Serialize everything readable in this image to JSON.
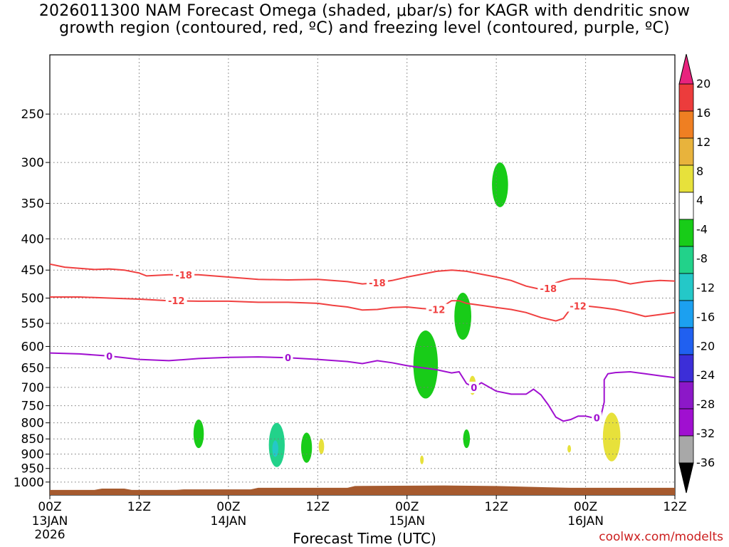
{
  "title": {
    "line1": "2026011300 NAM Forecast Omega (shaded, μbar/s) for KAGR with dendritic snow",
    "line2": "growth region (contoured, red, ºC) and freezing level (contoured, purple, ºC)"
  },
  "credit": "coolwx.com/modelts",
  "chart_data": {
    "type": "time-height cross section",
    "title": "2026011300 NAM Forecast Omega (shaded, μbar/s) for KAGR with dendritic snow growth region (contoured, red, ºC) and freezing level (contoured, purple, ºC)",
    "xlabel": "Forecast Time (UTC)",
    "ylabel": "",
    "x_unit": "hours since 2026-01-13 00Z",
    "xlim": [
      0,
      84
    ],
    "ylim_hPa": [
      1050,
      200
    ],
    "y_ticks": [
      250,
      300,
      350,
      400,
      450,
      500,
      550,
      600,
      650,
      700,
      750,
      800,
      850,
      900,
      950,
      1000
    ],
    "x_ticks": [
      {
        "h": 0,
        "label": "00Z",
        "day": "13JAN",
        "year": "2026"
      },
      {
        "h": 12,
        "label": "12Z",
        "day": "",
        "year": ""
      },
      {
        "h": 24,
        "label": "00Z",
        "day": "14JAN",
        "year": ""
      },
      {
        "h": 36,
        "label": "12Z",
        "day": "",
        "year": ""
      },
      {
        "h": 48,
        "label": "00Z",
        "day": "15JAN",
        "year": ""
      },
      {
        "h": 60,
        "label": "12Z",
        "day": "",
        "year": ""
      },
      {
        "h": 72,
        "label": "00Z",
        "day": "16JAN",
        "year": ""
      },
      {
        "h": 84,
        "label": "12Z",
        "day": "",
        "year": ""
      }
    ],
    "colorbar": {
      "labels": [
        "20",
        "16",
        "12",
        "8",
        "4",
        "-4",
        "-8",
        "-12",
        "-16",
        "-20",
        "-24",
        "-28",
        "-32",
        "-36"
      ],
      "colors": [
        "#e8237e",
        "#ec3c3c",
        "#ef7f22",
        "#e8b33c",
        "#e7e13b",
        "#ffffff",
        "#18cc18",
        "#22d28a",
        "#24c8c8",
        "#1ca0f0",
        "#2060f0",
        "#3c2ed8",
        "#8c18c8",
        "#a010d0",
        "#a8a8a8",
        "#000000"
      ]
    },
    "contours": [
      {
        "name": "-18 C",
        "label": "-18",
        "color": "#f04040",
        "points": [
          [
            0,
            440
          ],
          [
            2,
            445
          ],
          [
            4,
            447
          ],
          [
            6,
            449
          ],
          [
            8,
            448
          ],
          [
            10,
            450
          ],
          [
            12,
            455
          ],
          [
            13,
            460
          ],
          [
            16,
            458
          ],
          [
            20,
            458
          ],
          [
            24,
            462
          ],
          [
            28,
            466
          ],
          [
            32,
            467
          ],
          [
            36,
            466
          ],
          [
            40,
            470
          ],
          [
            42,
            474
          ],
          [
            44,
            472
          ],
          [
            46,
            468
          ],
          [
            48,
            462
          ],
          [
            50,
            457
          ],
          [
            52,
            452
          ],
          [
            54,
            450
          ],
          [
            56,
            452
          ],
          [
            58,
            457
          ],
          [
            60,
            462
          ],
          [
            62,
            468
          ],
          [
            64,
            478
          ],
          [
            66,
            484
          ],
          [
            67,
            482
          ],
          [
            68,
            472
          ],
          [
            69,
            468
          ],
          [
            70,
            465
          ],
          [
            72,
            465
          ],
          [
            76,
            468
          ],
          [
            78,
            474
          ],
          [
            80,
            470
          ],
          [
            82,
            468
          ],
          [
            84,
            469
          ]
        ]
      },
      {
        "name": "-12 C",
        "label": "-12",
        "color": "#f04040",
        "points": [
          [
            0,
            498
          ],
          [
            4,
            498
          ],
          [
            8,
            500
          ],
          [
            12,
            502
          ],
          [
            16,
            505
          ],
          [
            20,
            506
          ],
          [
            24,
            506
          ],
          [
            28,
            508
          ],
          [
            32,
            508
          ],
          [
            36,
            510
          ],
          [
            38,
            514
          ],
          [
            40,
            517
          ],
          [
            42,
            523
          ],
          [
            44,
            522
          ],
          [
            46,
            518
          ],
          [
            48,
            517
          ],
          [
            50,
            520
          ],
          [
            52,
            522
          ],
          [
            53,
            514
          ],
          [
            54,
            505
          ],
          [
            55,
            505
          ],
          [
            56,
            510
          ],
          [
            58,
            514
          ],
          [
            60,
            518
          ],
          [
            62,
            522
          ],
          [
            64,
            528
          ],
          [
            66,
            538
          ],
          [
            68,
            545
          ],
          [
            69,
            540
          ],
          [
            70,
            520
          ],
          [
            71,
            515
          ],
          [
            72,
            515
          ],
          [
            74,
            518
          ],
          [
            76,
            522
          ],
          [
            78,
            528
          ],
          [
            80,
            536
          ],
          [
            82,
            532
          ],
          [
            84,
            528
          ]
        ]
      },
      {
        "name": "0 C",
        "label": "0",
        "color": "#a010d0",
        "points": [
          [
            0,
            615
          ],
          [
            4,
            617
          ],
          [
            8,
            622
          ],
          [
            12,
            630
          ],
          [
            16,
            633
          ],
          [
            20,
            628
          ],
          [
            24,
            625
          ],
          [
            28,
            624
          ],
          [
            32,
            626
          ],
          [
            36,
            630
          ],
          [
            40,
            635
          ],
          [
            42,
            640
          ],
          [
            44,
            633
          ],
          [
            46,
            638
          ],
          [
            48,
            645
          ],
          [
            50,
            650
          ],
          [
            52,
            655
          ],
          [
            54,
            663
          ],
          [
            55,
            660
          ],
          [
            56,
            690
          ],
          [
            57,
            700
          ],
          [
            58,
            688
          ],
          [
            60,
            710
          ],
          [
            62,
            718
          ],
          [
            64,
            718
          ],
          [
            65,
            705
          ],
          [
            66,
            720
          ],
          [
            67,
            748
          ],
          [
            68,
            783
          ],
          [
            69,
            795
          ],
          [
            70,
            790
          ],
          [
            71,
            780
          ],
          [
            72,
            780
          ],
          [
            73,
            785
          ],
          [
            74,
            785
          ],
          [
            74.5,
            740
          ],
          [
            74.5,
            680
          ],
          [
            75,
            665
          ],
          [
            76,
            662
          ],
          [
            78,
            660
          ],
          [
            80,
            665
          ],
          [
            82,
            670
          ],
          [
            84,
            675
          ]
        ]
      }
    ],
    "omega_regions": [
      {
        "center_h": 20,
        "p_top": 790,
        "p_bottom": 880,
        "value": -8
      },
      {
        "center_h": 30.5,
        "p_top": 800,
        "p_bottom": 945,
        "value": -10
      },
      {
        "center_h": 30.3,
        "p_top": 855,
        "p_bottom": 910,
        "value": -14
      },
      {
        "center_h": 34.5,
        "p_top": 830,
        "p_bottom": 930,
        "value": -8
      },
      {
        "center_h": 36.5,
        "p_top": 850,
        "p_bottom": 900,
        "value": 4
      },
      {
        "center_h": 50.5,
        "p_top": 565,
        "p_bottom": 730,
        "value": -8
      },
      {
        "center_h": 55.5,
        "p_top": 490,
        "p_bottom": 585,
        "value": -8
      },
      {
        "center_h": 56,
        "p_top": 820,
        "p_bottom": 880,
        "value": -8
      },
      {
        "center_h": 60.5,
        "p_top": 300,
        "p_bottom": 355,
        "value": -8
      },
      {
        "center_h": 56.8,
        "p_top": 670,
        "p_bottom": 720,
        "value": 4
      },
      {
        "center_h": 50,
        "p_top": 905,
        "p_bottom": 935,
        "value": 4
      },
      {
        "center_h": 69.8,
        "p_top": 870,
        "p_bottom": 895,
        "value": 4
      },
      {
        "center_h": 75.5,
        "p_top": 770,
        "p_bottom": 925,
        "value": 5
      }
    ]
  }
}
